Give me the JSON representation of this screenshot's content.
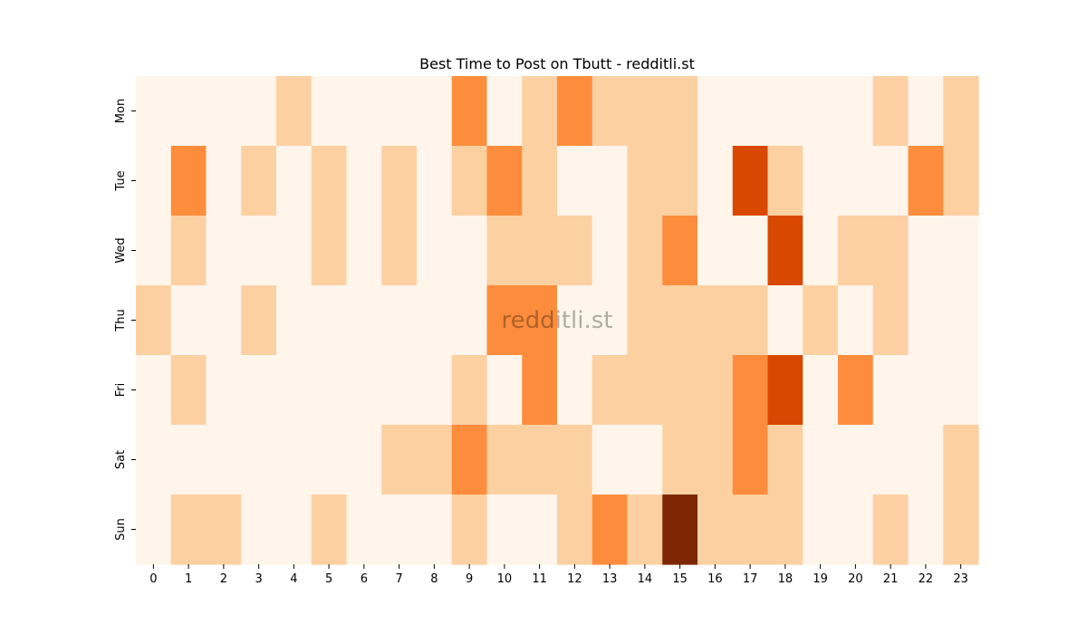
{
  "chart_data": {
    "type": "heatmap",
    "title": "Best Time to Post on Tbutt - redditli.st",
    "watermark": "redditli.st",
    "xlabel": "",
    "ylabel": "",
    "x_categories": [
      "0",
      "1",
      "2",
      "3",
      "4",
      "5",
      "6",
      "7",
      "8",
      "9",
      "10",
      "11",
      "12",
      "13",
      "14",
      "15",
      "16",
      "17",
      "18",
      "19",
      "20",
      "21",
      "22",
      "23"
    ],
    "y_categories": [
      "Mon",
      "Tue",
      "Wed",
      "Thu",
      "Fri",
      "Sat",
      "Sun"
    ],
    "colormap": "Oranges",
    "levels": [
      0,
      1,
      2,
      3,
      4
    ],
    "level_colors": [
      "#fff5eb",
      "#fdd0a2",
      "#fd8d3c",
      "#d94801",
      "#7f2704"
    ],
    "values": [
      [
        0,
        0,
        0,
        0,
        1,
        0,
        0,
        0,
        0,
        2,
        0,
        1,
        2,
        1,
        1,
        1,
        0,
        0,
        0,
        0,
        0,
        1,
        0,
        1
      ],
      [
        0,
        2,
        0,
        1,
        0,
        1,
        0,
        1,
        0,
        1,
        2,
        1,
        0,
        0,
        1,
        1,
        0,
        3,
        1,
        0,
        0,
        0,
        2,
        1
      ],
      [
        0,
        1,
        0,
        0,
        0,
        1,
        0,
        1,
        0,
        0,
        1,
        1,
        1,
        0,
        1,
        2,
        0,
        0,
        3,
        0,
        1,
        1,
        0,
        0
      ],
      [
        1,
        0,
        0,
        1,
        0,
        0,
        0,
        0,
        0,
        0,
        2,
        2,
        0,
        0,
        1,
        1,
        1,
        1,
        0,
        1,
        0,
        1,
        0,
        0
      ],
      [
        0,
        1,
        0,
        0,
        0,
        0,
        0,
        0,
        0,
        1,
        0,
        2,
        0,
        1,
        1,
        1,
        1,
        2,
        3,
        0,
        2,
        0,
        0,
        0
      ],
      [
        0,
        0,
        0,
        0,
        0,
        0,
        0,
        1,
        1,
        2,
        1,
        1,
        1,
        0,
        0,
        1,
        1,
        2,
        1,
        0,
        0,
        0,
        0,
        1
      ],
      [
        0,
        1,
        1,
        0,
        0,
        1,
        0,
        0,
        0,
        1,
        0,
        0,
        1,
        2,
        1,
        4,
        1,
        1,
        1,
        0,
        0,
        1,
        0,
        1
      ]
    ],
    "grid": false,
    "legend": "none"
  }
}
